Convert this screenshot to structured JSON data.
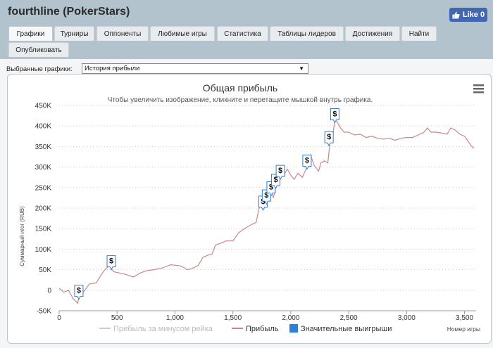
{
  "app": {
    "title": "fourthline (PokerStars)"
  },
  "facebook": {
    "like_label": "Like 0"
  },
  "tabs": [
    {
      "label": "Графики",
      "active": true
    },
    {
      "label": "Турниры"
    },
    {
      "label": "Оппоненты"
    },
    {
      "label": "Любимые игры"
    },
    {
      "label": "Статистика"
    },
    {
      "label": "Таблицы лидеров"
    },
    {
      "label": "Достижения"
    },
    {
      "label": "Найти"
    },
    {
      "label": "Опубликовать"
    }
  ],
  "graph_select": {
    "label": "Выбранные графики:",
    "value": "История прибыли"
  },
  "colors": {
    "profit_line": "#c98888",
    "rake_line": "#cccccc",
    "win_marker": "#2f7ed8",
    "header_bg": "#b2c3cd"
  },
  "chart_data": {
    "type": "line",
    "title": "Общая прибыль",
    "subtitle": "Чтобы увеличить изображение, кликните и перетащите мышкой внутрь графика.",
    "ylabel": "Суммарный игог (RUB)",
    "xlabel": "Номер игры",
    "ylim": [
      -50000,
      450000
    ],
    "xlim": [
      0,
      3600
    ],
    "yticks": [
      -50000,
      0,
      50000,
      100000,
      150000,
      200000,
      250000,
      300000,
      350000,
      400000,
      450000
    ],
    "ytick_labels": [
      "-50K",
      "0",
      "50K",
      "100K",
      "150K",
      "200K",
      "250K",
      "300K",
      "350K",
      "400K",
      "450K"
    ],
    "xticks": [
      0,
      500,
      1000,
      1500,
      2000,
      2500,
      3000,
      3500
    ],
    "xtick_labels": [
      "0",
      "500",
      "1,000",
      "1,500",
      "2,000",
      "2,500",
      "3,000",
      "3,500"
    ],
    "grid": true,
    "legend_position": "bottom",
    "series": [
      {
        "name": "Прибыль за минусом рейка",
        "visible": false,
        "points": []
      },
      {
        "name": "Прибыль",
        "points": [
          [
            0,
            5000
          ],
          [
            40,
            -5000
          ],
          [
            80,
            0
          ],
          [
            120,
            -20000
          ],
          [
            160,
            -32000
          ],
          [
            175,
            -10000
          ],
          [
            200,
            -8000
          ],
          [
            260,
            15000
          ],
          [
            320,
            18000
          ],
          [
            380,
            45000
          ],
          [
            430,
            60000
          ],
          [
            470,
            45000
          ],
          [
            520,
            42000
          ],
          [
            580,
            38000
          ],
          [
            640,
            32000
          ],
          [
            700,
            42000
          ],
          [
            760,
            48000
          ],
          [
            820,
            50000
          ],
          [
            900,
            55000
          ],
          [
            960,
            62000
          ],
          [
            1040,
            60000
          ],
          [
            1080,
            55000
          ],
          [
            1100,
            50000
          ],
          [
            1140,
            52000
          ],
          [
            1200,
            60000
          ],
          [
            1240,
            80000
          ],
          [
            1280,
            85000
          ],
          [
            1320,
            88000
          ],
          [
            1350,
            110000
          ],
          [
            1400,
            115000
          ],
          [
            1440,
            120000
          ],
          [
            1500,
            120000
          ],
          [
            1550,
            140000
          ],
          [
            1600,
            150000
          ],
          [
            1660,
            160000
          ],
          [
            1700,
            165000
          ],
          [
            1730,
            205000
          ],
          [
            1750,
            215000
          ],
          [
            1770,
            200000
          ],
          [
            1790,
            225000
          ],
          [
            1810,
            230000
          ],
          [
            1830,
            245000
          ],
          [
            1850,
            225000
          ],
          [
            1870,
            250000
          ],
          [
            1890,
            260000
          ],
          [
            1910,
            280000
          ],
          [
            1930,
            290000
          ],
          [
            1950,
            285000
          ],
          [
            1970,
            295000
          ],
          [
            2000,
            280000
          ],
          [
            2030,
            270000
          ],
          [
            2060,
            285000
          ],
          [
            2100,
            275000
          ],
          [
            2140,
            300000
          ],
          [
            2170,
            330000
          ],
          [
            2200,
            305000
          ],
          [
            2240,
            290000
          ],
          [
            2260,
            310000
          ],
          [
            2290,
            315000
          ],
          [
            2320,
            310000
          ],
          [
            2340,
            365000
          ],
          [
            2360,
            370000
          ],
          [
            2380,
            415000
          ],
          [
            2400,
            410000
          ],
          [
            2430,
            395000
          ],
          [
            2460,
            385000
          ],
          [
            2500,
            385000
          ],
          [
            2550,
            378000
          ],
          [
            2600,
            380000
          ],
          [
            2650,
            372000
          ],
          [
            2700,
            375000
          ],
          [
            2750,
            370000
          ],
          [
            2800,
            368000
          ],
          [
            2850,
            370000
          ],
          [
            2900,
            365000
          ],
          [
            2950,
            370000
          ],
          [
            3000,
            372000
          ],
          [
            3050,
            372000
          ],
          [
            3100,
            378000
          ],
          [
            3150,
            385000
          ],
          [
            3180,
            395000
          ],
          [
            3210,
            385000
          ],
          [
            3250,
            385000
          ],
          [
            3300,
            383000
          ],
          [
            3350,
            380000
          ],
          [
            3380,
            395000
          ],
          [
            3420,
            390000
          ],
          [
            3460,
            380000
          ],
          [
            3500,
            375000
          ],
          [
            3550,
            355000
          ],
          [
            3580,
            345000
          ]
        ]
      },
      {
        "name": "Значительные выигрыши",
        "type": "flags",
        "points": [
          [
            170,
            -22000
          ],
          [
            450,
            50000
          ],
          [
            1760,
            195000
          ],
          [
            1790,
            210000
          ],
          [
            1830,
            230000
          ],
          [
            1870,
            248000
          ],
          [
            1910,
            270000
          ],
          [
            2140,
            295000
          ],
          [
            2330,
            352000
          ],
          [
            2380,
            408000
          ]
        ]
      }
    ],
    "flag_label": "$"
  }
}
